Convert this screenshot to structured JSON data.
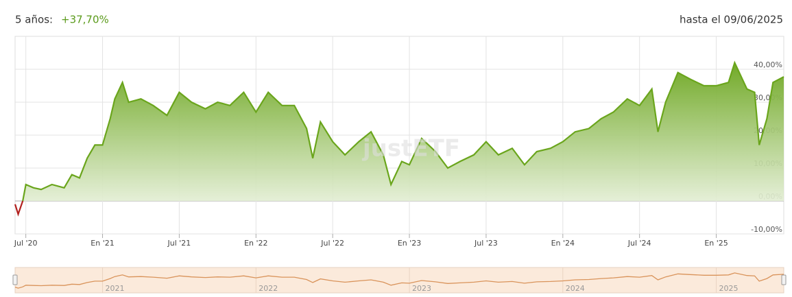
{
  "chart_data": {
    "type": "line",
    "title_prefix": "5 años:",
    "performance": "+37,70%",
    "as_of": "hasta el 09/06/2025",
    "watermark": "justETF",
    "xlim": [
      2020.43,
      2025.44
    ],
    "xticks": [
      {
        "value": 2020.5,
        "label": "Jul '20"
      },
      {
        "value": 2021.0,
        "label": "En '21"
      },
      {
        "value": 2021.5,
        "label": "Jul '21"
      },
      {
        "value": 2022.0,
        "label": "En '22"
      },
      {
        "value": 2022.5,
        "label": "Jul '22"
      },
      {
        "value": 2023.0,
        "label": "En '23"
      },
      {
        "value": 2023.5,
        "label": "Jul '23"
      },
      {
        "value": 2024.0,
        "label": "En '24"
      },
      {
        "value": 2024.5,
        "label": "Jul '24"
      },
      {
        "value": 2025.0,
        "label": "En '25"
      }
    ],
    "ylim": [
      -10,
      50
    ],
    "yticks": [
      {
        "value": -10,
        "label": "-10,00%"
      },
      {
        "value": 0,
        "label": "0,00%"
      },
      {
        "value": 10,
        "label": "10,00%"
      },
      {
        "value": 20,
        "label": "20,00%"
      },
      {
        "value": 30,
        "label": "30,00%"
      },
      {
        "value": 40,
        "label": "40,00%"
      }
    ],
    "grid": true,
    "x": [
      2020.43,
      2020.45,
      2020.48,
      2020.5,
      2020.55,
      2020.6,
      2020.67,
      2020.75,
      2020.8,
      2020.85,
      2020.9,
      2020.95,
      2021.0,
      2021.05,
      2021.08,
      2021.13,
      2021.17,
      2021.25,
      2021.33,
      2021.42,
      2021.5,
      2021.58,
      2021.67,
      2021.75,
      2021.83,
      2021.92,
      2022.0,
      2022.08,
      2022.17,
      2022.25,
      2022.33,
      2022.37,
      2022.42,
      2022.5,
      2022.58,
      2022.67,
      2022.75,
      2022.83,
      2022.88,
      2022.95,
      2023.0,
      2023.08,
      2023.17,
      2023.25,
      2023.33,
      2023.42,
      2023.5,
      2023.58,
      2023.67,
      2023.75,
      2023.83,
      2023.92,
      2024.0,
      2024.08,
      2024.17,
      2024.25,
      2024.33,
      2024.42,
      2024.5,
      2024.58,
      2024.62,
      2024.67,
      2024.75,
      2024.83,
      2024.92,
      2025.0,
      2025.08,
      2025.12,
      2025.2,
      2025.25,
      2025.28,
      2025.33,
      2025.37,
      2025.44
    ],
    "series": [
      {
        "color": "#6aa51c",
        "negative_color": "#b2201e",
        "values": [
          -1,
          -4,
          0,
          5,
          4,
          3.5,
          5,
          4,
          8,
          7,
          13,
          17,
          17,
          25,
          31,
          36,
          30,
          31,
          29,
          26,
          33,
          30,
          28,
          30,
          29,
          33,
          27,
          33,
          29,
          29,
          22,
          13,
          24,
          18,
          14,
          18,
          21,
          14,
          5,
          12,
          11,
          19,
          15,
          10,
          12,
          14,
          18,
          14,
          16,
          11,
          15,
          16,
          18,
          21,
          22,
          25,
          27,
          31,
          29,
          34,
          21,
          30,
          39,
          37,
          35,
          35,
          36,
          42,
          34,
          33,
          17,
          25,
          36,
          37.7
        ]
      }
    ],
    "navigator": {
      "color": "#d9935a",
      "background": "#fbeadb",
      "ticks": [
        2021,
        2022,
        2023,
        2024,
        2025
      ]
    }
  }
}
